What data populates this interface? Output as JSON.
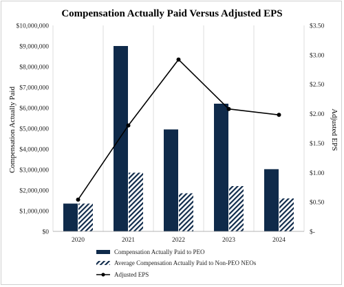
{
  "chart_data": {
    "type": "bar",
    "title": "Compensation Actually Paid Versus Adjusted EPS",
    "ylabel": "Compensation Actually Paid",
    "y2label": "Adjusted EPS",
    "categories": [
      "2020",
      "2021",
      "2022",
      "2023",
      "2024"
    ],
    "ylim": [
      0,
      10000000
    ],
    "y2lim": [
      0,
      3.5
    ],
    "yticks": [
      "$0",
      "$1,000,000",
      "$2,000,000",
      "$3,000,000",
      "$4,000,000",
      "$5,000,000",
      "$6,000,000",
      "$7,000,000",
      "$8,000,000",
      "$9,000,000",
      "$10,000,000"
    ],
    "y2ticks": [
      "$-",
      "$0.50",
      "$1.00",
      "$1.50",
      "$2.00",
      "$2.50",
      "$3.00",
      "$3.50"
    ],
    "grid": "vertical-category-separators",
    "legend_position": "bottom",
    "series": [
      {
        "name": "Compensation Actually Paid to PEO",
        "type": "bar",
        "axis": "left",
        "color": "#0f2a4a",
        "pattern": "solid",
        "values": [
          1350000,
          9000000,
          4950000,
          6200000,
          3020000
        ]
      },
      {
        "name": "Average Compensation Actually Paid to Non-PEO NEOs",
        "type": "bar",
        "axis": "left",
        "color": "#0f2a4a",
        "pattern": "diagonal-hatch",
        "values": [
          1350000,
          2850000,
          1850000,
          2200000,
          1600000
        ]
      },
      {
        "name": "Adjusted EPS",
        "type": "line",
        "axis": "right",
        "color": "#000000",
        "marker": "circle",
        "values": [
          0.54,
          1.8,
          2.92,
          2.08,
          1.98
        ]
      }
    ]
  }
}
